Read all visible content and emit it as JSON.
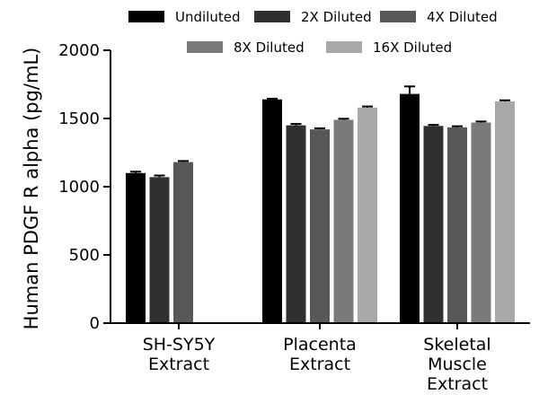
{
  "chart_data": {
    "type": "bar",
    "title": "",
    "xlabel": "",
    "ylabel": "Human PDGF R alpha (pg/mL)",
    "ylim": [
      0,
      2000
    ],
    "yticks": [
      0,
      500,
      1000,
      1500,
      2000
    ],
    "ytick_labels": [
      "0",
      "500",
      "1000",
      "1500",
      "2000"
    ],
    "grid": false,
    "legend_position": "top",
    "categories": [
      [
        "SH-SY5Y",
        "Extract"
      ],
      [
        "Placenta",
        "Extract"
      ],
      [
        "Skeletal",
        "Muscle",
        "Extract"
      ]
    ],
    "series": [
      {
        "name": "Undiluted",
        "color": "#000000",
        "values": [
          1100,
          1640,
          1680
        ],
        "errors": [
          10,
          5,
          55
        ]
      },
      {
        "name": "2X Diluted",
        "color": "#303030",
        "values": [
          1070,
          1450,
          1445
        ],
        "errors": [
          12,
          10,
          8
        ]
      },
      {
        "name": "4X Diluted",
        "color": "#585858",
        "values": [
          1180,
          1420,
          1435
        ],
        "errors": [
          8,
          8,
          8
        ]
      },
      {
        "name": "8X Diluted",
        "color": "#7a7a7a",
        "values": [
          null,
          1490,
          1470
        ],
        "errors": [
          null,
          8,
          8
        ]
      },
      {
        "name": "16X Diluted",
        "color": "#a8a8a8",
        "values": [
          null,
          1580,
          1625
        ],
        "errors": [
          null,
          8,
          8
        ]
      }
    ]
  }
}
